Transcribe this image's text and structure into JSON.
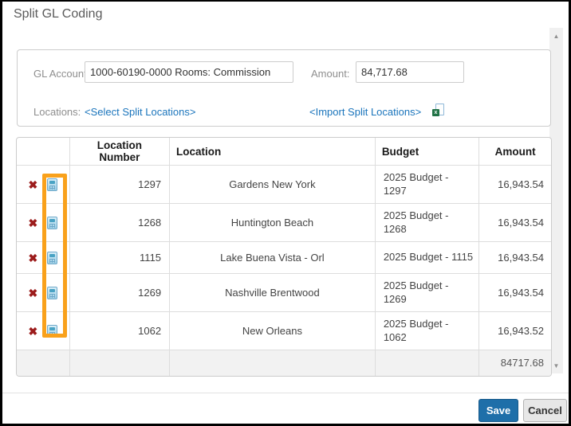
{
  "dialog": {
    "title": "Split GL Coding"
  },
  "form": {
    "gl_account_label": "GL Account:",
    "gl_account_value": "1000-60190-0000 Rooms: Commission",
    "amount_label": "Amount:",
    "amount_value": "84,717.68",
    "locations_label": "Locations:",
    "select_split_link": "<Select Split Locations>",
    "import_split_link": "<Import Split Locations>",
    "excel_icon_glyph": "x"
  },
  "table": {
    "headers": [
      "",
      "Location Number",
      "Location",
      "Budget",
      "Amount"
    ],
    "rows": [
      {
        "location_number": "1297",
        "location": "Gardens New York",
        "budget": "2025 Budget - 1297",
        "amount": "16,943.54",
        "single_line": false
      },
      {
        "location_number": "1268",
        "location": "Huntington Beach",
        "budget": "2025 Budget - 1268",
        "amount": "16,943.54",
        "single_line": false
      },
      {
        "location_number": "1115",
        "location": "Lake Buena Vista - Orl",
        "budget": "2025 Budget - 1115",
        "amount": "16,943.54",
        "single_line": true
      },
      {
        "location_number": "1269",
        "location": "Nashville Brentwood",
        "budget": "2025 Budget - 1269",
        "amount": "16,943.54",
        "single_line": false
      },
      {
        "location_number": "1062",
        "location": "New Orleans",
        "budget": "2025 Budget - 1062",
        "amount": "16,943.52",
        "single_line": false
      }
    ],
    "total_amount": "84717.68",
    "delete_icon_glyph": "✖"
  },
  "footer": {
    "save_label": "Save",
    "cancel_label": "Cancel"
  },
  "scrollbar": {
    "up_glyph": "▲",
    "down_glyph": "▼"
  },
  "colors": {
    "highlight_annotation": "#f9a11b",
    "link_blue": "#1b75bc",
    "save_button": "#1e6fa9",
    "delete_red": "#9c1c1c"
  }
}
